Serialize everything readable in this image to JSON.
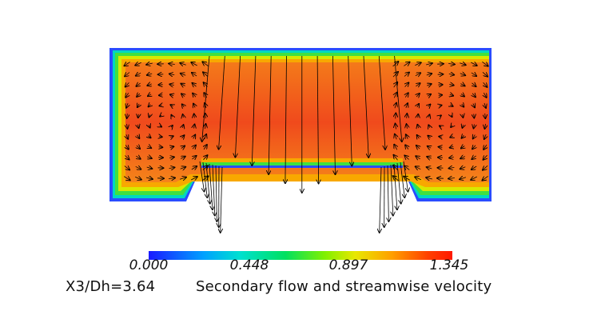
{
  "figure": {
    "position_label": "X3/Dh=3.64",
    "caption": "Secondary flow and streamwise velocity"
  },
  "colorbar": {
    "min": 0.0,
    "max": 1.345,
    "ticks": [
      "0.000",
      "0.448",
      "0.897",
      "1.345"
    ],
    "tick_values": [
      0.0,
      0.448,
      0.897,
      1.345
    ],
    "colors": [
      "#1a1aff",
      "#00a0ff",
      "#00e0d0",
      "#00e060",
      "#80f000",
      "#e8e800",
      "#ffa000",
      "#ff4000",
      "#ff1800"
    ]
  },
  "field": {
    "core_color": "#f25a1a",
    "wall_color": "#2a4cff"
  }
}
